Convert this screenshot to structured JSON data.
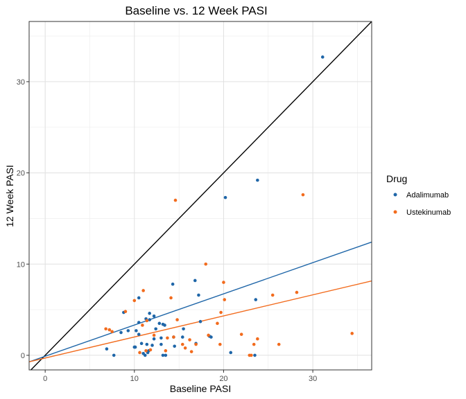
{
  "chart_data": {
    "type": "scatter",
    "title": "Baseline vs. 12 Week PASI",
    "xlabel": "Baseline PASI",
    "ylabel": "12 Week PASI",
    "xlim": [
      -1.8,
      36.6
    ],
    "ylim": [
      -1.6,
      36.6
    ],
    "x_ticks": [
      0,
      10,
      20,
      30
    ],
    "y_ticks": [
      0,
      10,
      20,
      30
    ],
    "grid": true,
    "legend_title": "Drug",
    "legend_position": "right",
    "series": [
      {
        "name": "Adalimumab",
        "color": "#1f66a8",
        "x": [
          31.1,
          23.8,
          20.2,
          16.8,
          14.3,
          10.5,
          8.5,
          8.8,
          17.2,
          15.5,
          23.6,
          12.8,
          13.4,
          14.4,
          11.7,
          12.4,
          10.2,
          12.2,
          13.0,
          13.2,
          10.5,
          11.3,
          10.8,
          9.3,
          10.5,
          10.0,
          11.6,
          17.4,
          18.4,
          18.6,
          15.4,
          16.9,
          14.5,
          13.0,
          12.0,
          11.4,
          11.2,
          10.1,
          11.0,
          11.5,
          6.9,
          7.7,
          13.2,
          13.5,
          20.8,
          23.5,
          12.2,
          11.7
        ],
        "y": [
          32.7,
          19.2,
          17.3,
          8.2,
          7.8,
          6.3,
          2.5,
          4.7,
          6.6,
          2.9,
          6.1,
          3.5,
          3.3,
          2.0,
          4.6,
          2.9,
          2.7,
          1.8,
          1.9,
          3.4,
          3.6,
          4.0,
          1.3,
          2.7,
          2.3,
          0.9,
          0.5,
          3.7,
          2.1,
          2.0,
          2.0,
          1.3,
          1.0,
          1.2,
          1.1,
          1.2,
          0.0,
          0.9,
          0.2,
          0.3,
          0.7,
          0.0,
          0.0,
          0.0,
          0.3,
          0.0,
          4.3,
          3.9
        ]
      },
      {
        "name": "Ustekinumab",
        "color": "#f26b1d",
        "x": [
          14.6,
          28.9,
          18.0,
          20.0,
          28.2,
          25.5,
          20.1,
          10.0,
          11.0,
          14.1,
          19.7,
          9.0,
          7.5,
          10.9,
          11.4,
          14.8,
          16.2,
          18.3,
          19.3,
          22.0,
          23.1,
          23.8,
          26.2,
          34.4,
          7.2,
          6.8,
          15.4,
          16.9,
          19.6,
          15.7,
          13.7,
          12.2,
          14.4,
          13.5,
          10.6,
          11.8,
          22.9,
          23.4,
          16.4,
          11.3
        ],
        "y": [
          17.0,
          17.6,
          10.0,
          8.0,
          6.9,
          6.6,
          6.1,
          6.0,
          7.1,
          6.3,
          4.7,
          4.8,
          2.6,
          3.3,
          3.8,
          3.9,
          1.7,
          2.2,
          3.5,
          2.3,
          0.0,
          1.8,
          1.2,
          2.4,
          2.8,
          2.9,
          1.2,
          1.2,
          1.2,
          0.8,
          1.9,
          2.2,
          2.0,
          0.5,
          0.3,
          0.6,
          0.0,
          1.2,
          0.4,
          0.5
        ]
      }
    ],
    "lines": [
      {
        "name": "identity",
        "color": "#000000",
        "intercept": 0.0,
        "slope": 1.0
      },
      {
        "name": "Adalimumab fit",
        "color": "#1f66a8",
        "intercept": -0.1,
        "slope": 0.342
      },
      {
        "name": "Ustekinumab fit",
        "color": "#f26b1d",
        "intercept": -0.3,
        "slope": 0.231
      }
    ]
  }
}
